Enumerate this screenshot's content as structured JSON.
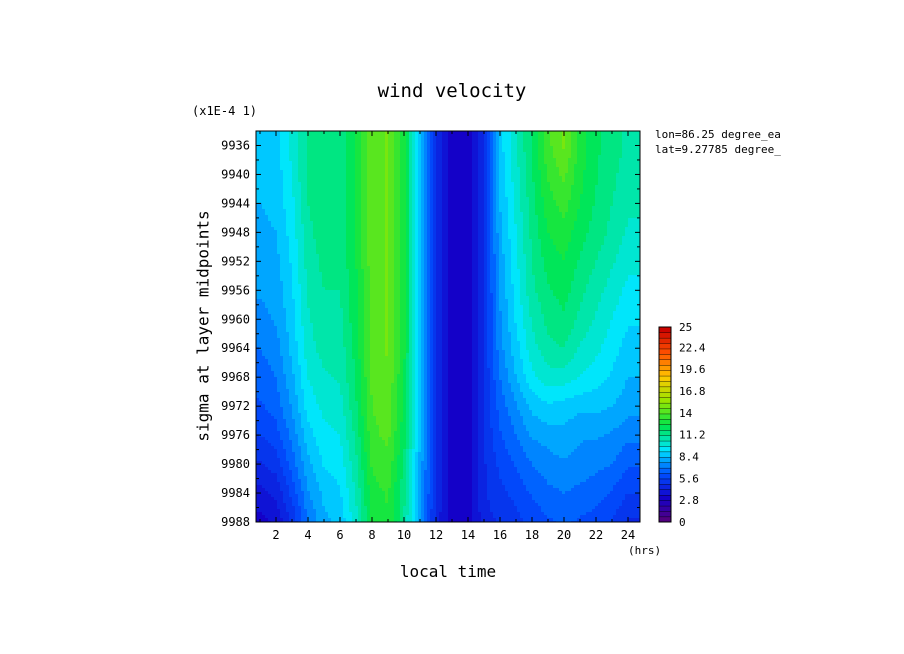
{
  "chart_data": {
    "type": "heatmap",
    "title": "wind velocity",
    "scale_note": "(x1E-4 1)",
    "xlabel": "local time",
    "xunit": "(hrs)",
    "ylabel": "sigma at layer midpoints",
    "annotations": [
      "lon=86.25 degree_ea",
      "lat=9.27785 degree_"
    ],
    "xlim": [
      0.75,
      24.75
    ],
    "ylim": [
      9988,
      9934
    ],
    "xticks": [
      2,
      4,
      6,
      8,
      10,
      12,
      14,
      16,
      18,
      20,
      22,
      24
    ],
    "xtick_labels": [
      "2",
      "4",
      "6",
      "8",
      "10",
      "12",
      "14",
      "16",
      "18",
      "20",
      "22",
      "24"
    ],
    "yticks": [
      9936,
      9940,
      9944,
      9948,
      9952,
      9956,
      9960,
      9964,
      9968,
      9972,
      9976,
      9980,
      9984,
      9988
    ],
    "ytick_labels": [
      "9936",
      "9940",
      "9944",
      "9948",
      "9952",
      "9956",
      "9960",
      "9964",
      "9968",
      "9972",
      "9976",
      "9980",
      "9984",
      "9988"
    ],
    "x": [
      1,
      2,
      3,
      4,
      5,
      6,
      7,
      8,
      9,
      10,
      11,
      12,
      13,
      14,
      15,
      16,
      17,
      18,
      19,
      20,
      21,
      22,
      23,
      24
    ],
    "y": [
      9936,
      9940,
      9944,
      9948,
      9952,
      9956,
      9960,
      9964,
      9968,
      9972,
      9976,
      9980,
      9984,
      9988
    ],
    "z": [
      [
        8.8,
        8.9,
        10.0,
        11.4,
        11.8,
        11.6,
        12.6,
        14.4,
        14.8,
        12.8,
        8.8,
        5.0,
        3.0,
        3.0,
        5.0,
        8.8,
        10.4,
        12.0,
        13.8,
        14.8,
        13.0,
        12.0,
        11.6,
        11.0
      ],
      [
        8.6,
        8.7,
        9.8,
        11.4,
        11.8,
        11.6,
        12.6,
        14.4,
        14.8,
        12.8,
        8.8,
        5.0,
        3.0,
        3.0,
        5.0,
        8.6,
        10.2,
        11.8,
        13.4,
        14.2,
        12.8,
        12.0,
        11.4,
        10.8
      ],
      [
        8.4,
        8.6,
        9.6,
        11.2,
        11.8,
        11.6,
        12.6,
        14.4,
        14.8,
        12.8,
        8.8,
        5.0,
        3.0,
        3.0,
        5.0,
        8.4,
        10.0,
        11.6,
        13.0,
        13.6,
        12.6,
        11.8,
        11.2,
        10.6
      ],
      [
        8.2,
        8.4,
        9.4,
        11.0,
        11.6,
        11.4,
        12.6,
        14.4,
        14.8,
        12.8,
        8.8,
        5.0,
        3.0,
        3.0,
        5.0,
        8.2,
        9.8,
        11.4,
        12.6,
        13.0,
        12.2,
        11.6,
        11.0,
        10.4
      ],
      [
        8.0,
        8.2,
        9.2,
        10.8,
        11.4,
        11.4,
        12.6,
        14.4,
        14.8,
        12.8,
        8.8,
        5.0,
        3.0,
        3.0,
        5.0,
        8.0,
        9.6,
        11.2,
        12.2,
        12.6,
        11.8,
        11.2,
        10.6,
        10.0
      ],
      [
        7.8,
        8.0,
        9.0,
        10.6,
        11.2,
        11.2,
        12.4,
        14.4,
        14.8,
        12.8,
        8.8,
        5.0,
        3.0,
        3.0,
        5.0,
        7.8,
        9.4,
        11.0,
        11.8,
        12.2,
        11.4,
        10.8,
        10.2,
        9.6
      ],
      [
        7.4,
        7.8,
        8.8,
        10.4,
        11.0,
        11.0,
        12.4,
        14.4,
        14.8,
        12.8,
        8.8,
        5.0,
        3.0,
        3.0,
        5.0,
        7.6,
        9.2,
        10.6,
        11.4,
        11.8,
        11.0,
        10.4,
        9.8,
        9.2
      ],
      [
        7.0,
        7.4,
        8.6,
        10.2,
        10.8,
        10.8,
        12.2,
        14.4,
        14.8,
        12.8,
        8.8,
        5.0,
        3.0,
        3.0,
        5.0,
        7.4,
        8.8,
        10.2,
        11.0,
        11.2,
        10.4,
        10.0,
        9.4,
        8.8
      ],
      [
        6.6,
        7.0,
        8.2,
        9.8,
        10.4,
        10.6,
        12.0,
        14.2,
        14.6,
        12.6,
        8.8,
        5.0,
        3.0,
        3.0,
        5.0,
        7.0,
        8.4,
        9.6,
        10.2,
        10.2,
        9.8,
        9.4,
        9.0,
        8.4
      ],
      [
        6.2,
        6.6,
        7.8,
        9.4,
        10.0,
        10.2,
        11.8,
        14.0,
        14.4,
        12.4,
        8.6,
        5.0,
        3.0,
        3.0,
        5.0,
        6.6,
        7.6,
        8.6,
        9.0,
        8.8,
        8.6,
        8.6,
        8.4,
        8.0
      ],
      [
        5.6,
        6.0,
        7.2,
        8.8,
        9.6,
        9.8,
        11.4,
        13.8,
        14.2,
        12.2,
        8.4,
        5.0,
        3.0,
        3.0,
        5.0,
        6.2,
        7.0,
        7.8,
        8.0,
        8.2,
        7.8,
        7.8,
        7.6,
        7.2
      ],
      [
        4.8,
        5.2,
        6.6,
        8.2,
        9.2,
        9.4,
        11.0,
        13.4,
        13.8,
        11.8,
        8.2,
        4.8,
        3.0,
        3.0,
        4.8,
        5.8,
        6.4,
        7.0,
        7.4,
        7.6,
        7.4,
        7.2,
        7.0,
        6.4
      ],
      [
        4.0,
        4.4,
        5.8,
        7.6,
        8.6,
        9.0,
        10.6,
        13.0,
        13.4,
        11.4,
        8.0,
        4.8,
        3.0,
        3.0,
        4.8,
        5.4,
        5.8,
        6.4,
        6.8,
        7.0,
        6.8,
        6.6,
        6.2,
        5.6
      ],
      [
        3.2,
        3.6,
        5.0,
        7.0,
        8.2,
        8.6,
        10.2,
        12.8,
        13.2,
        11.2,
        7.8,
        4.6,
        3.0,
        3.0,
        4.6,
        5.0,
        5.4,
        5.8,
        6.2,
        6.4,
        6.2,
        6.0,
        5.6,
        4.8
      ]
    ],
    "colorbar": {
      "min": 0,
      "max": 25,
      "step": 0.7,
      "tick_values": [
        0,
        2.8,
        5.6,
        8.4,
        11.2,
        14,
        16.8,
        19.6,
        22.4,
        25
      ],
      "tick_labels": [
        "0",
        "2.8",
        "5.6",
        "8.4",
        "11.2",
        "14",
        "16.8",
        "19.6",
        "22.4",
        "25"
      ],
      "colors": [
        "#5a0078",
        "#1400c8",
        "#0050ff",
        "#00e6ff",
        "#00e64b",
        "#96e600",
        "#ffc800",
        "#ff5000",
        "#c80000"
      ]
    }
  }
}
